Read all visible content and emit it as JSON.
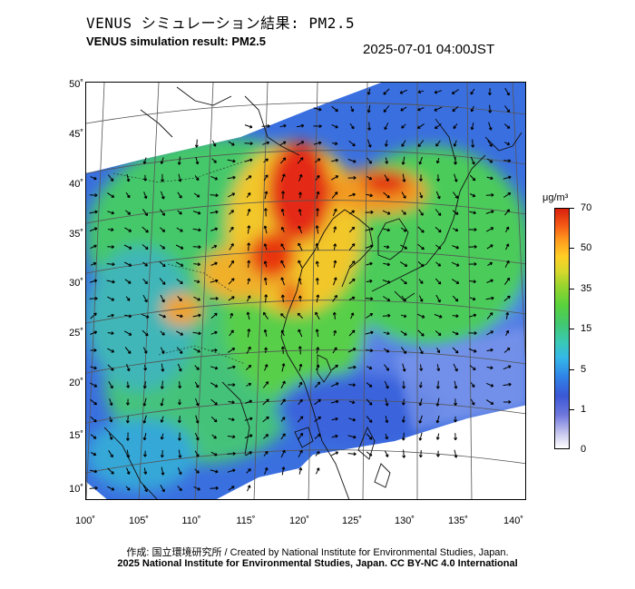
{
  "header": {
    "title_jp": "VENUS シミュレーション結果: PM2.5",
    "title_en": "VENUS simulation result: PM2.5",
    "timestamp": "2025-07-01 04:00JST"
  },
  "axes": {
    "lat_labels": [
      "50˚",
      "45˚",
      "40˚",
      "35˚",
      "30˚",
      "25˚",
      "20˚",
      "15˚",
      "10˚"
    ],
    "lon_labels": [
      "100˚",
      "105˚",
      "110˚",
      "115˚",
      "120˚",
      "125˚",
      "130˚",
      "135˚",
      "140˚"
    ]
  },
  "colorbar": {
    "unit": "μg/m³",
    "ticks": [
      "70",
      "50",
      "35",
      "15",
      "5",
      "1",
      "0"
    ],
    "colors": [
      "#ffffff",
      "#6f77dd",
      "#2f84e8",
      "#42c86f",
      "#ffcf26",
      "#f45a16",
      "#d9200d"
    ]
  },
  "footer": {
    "credit": "作成: 国立環境研究所 / Created by National Institute for Environmental Studies, Japan.",
    "copyright": "2025 National Institute for Environmental Studies, Japan. CC BY-NC 4.0 International"
  }
}
